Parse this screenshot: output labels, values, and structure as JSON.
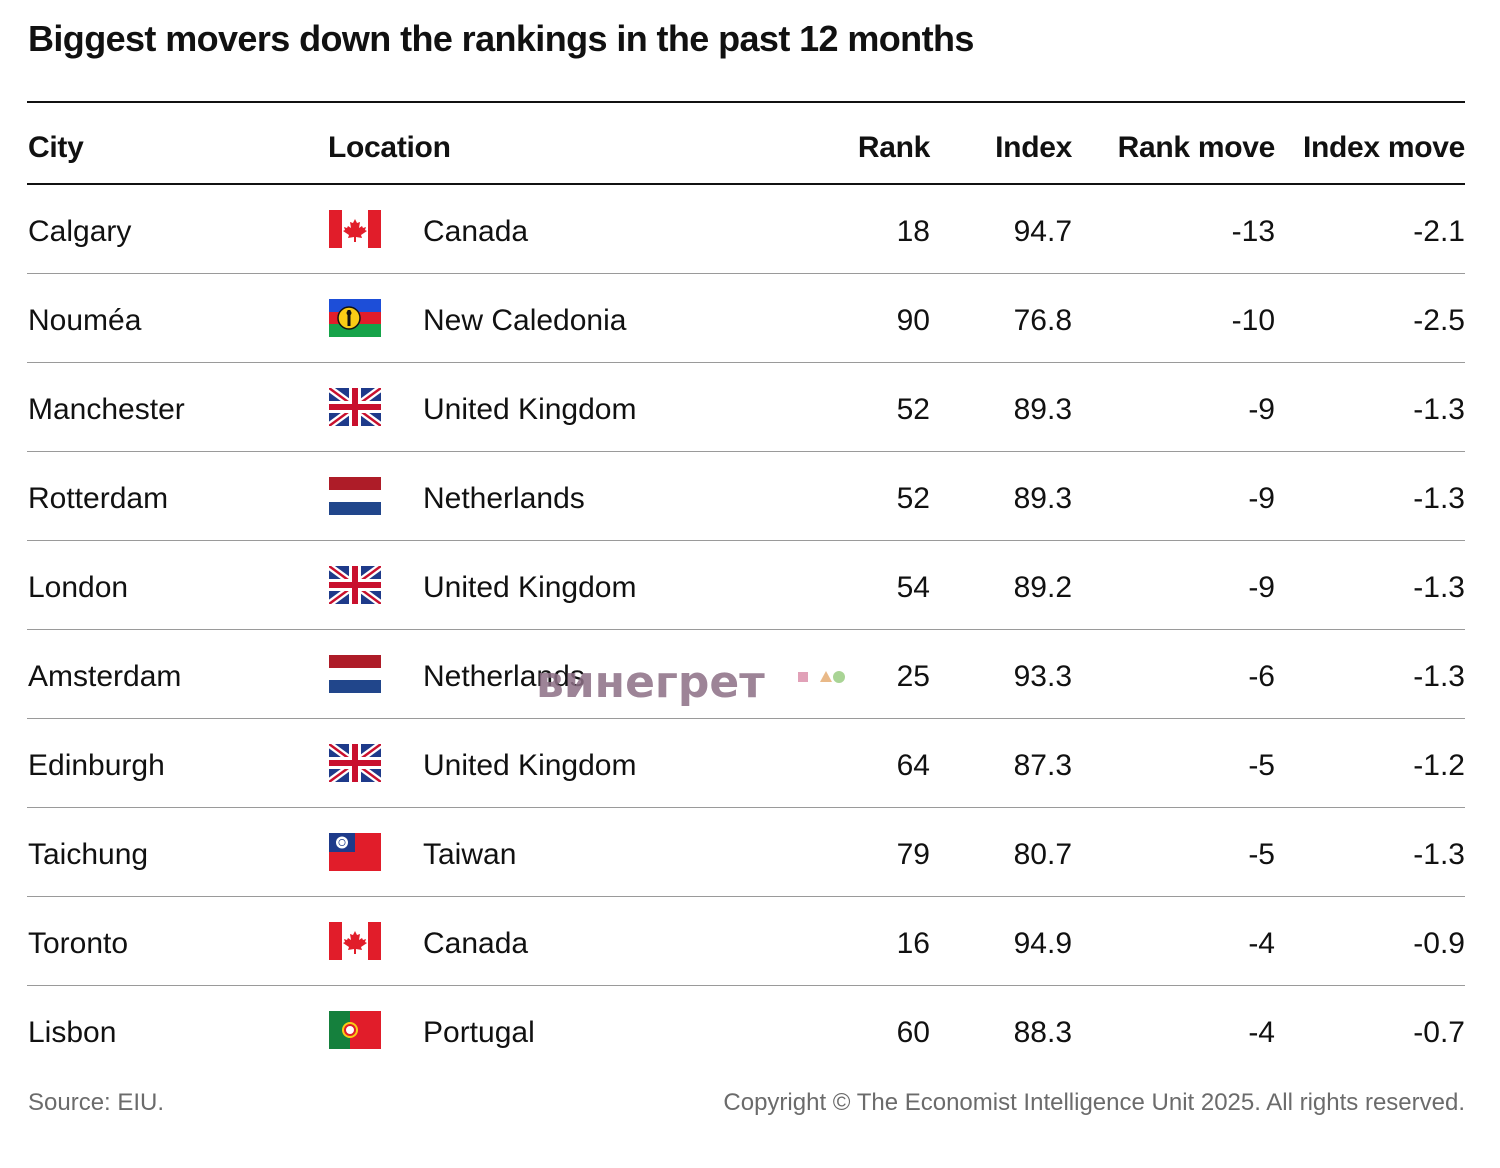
{
  "chart_data": {
    "type": "table",
    "title": "Biggest movers down the rankings in the past 12 months",
    "columns": [
      "City",
      "Location",
      "Rank",
      "Index",
      "Rank move",
      "Index move"
    ],
    "rows": [
      {
        "city": "Calgary",
        "flag": "canada-flag-icon",
        "location": "Canada",
        "rank": "18",
        "index": "94.7",
        "rank_move": "-13",
        "index_move": "-2.1"
      },
      {
        "city": "Nouméa",
        "flag": "new-caledonia-flag-icon",
        "location": "New Caledonia",
        "rank": "90",
        "index": "76.8",
        "rank_move": "-10",
        "index_move": "-2.5"
      },
      {
        "city": "Manchester",
        "flag": "united-kingdom-flag-icon",
        "location": "United Kingdom",
        "rank": "52",
        "index": "89.3",
        "rank_move": "-9",
        "index_move": "-1.3"
      },
      {
        "city": "Rotterdam",
        "flag": "netherlands-flag-icon",
        "location": "Netherlands",
        "rank": "52",
        "index": "89.3",
        "rank_move": "-9",
        "index_move": "-1.3"
      },
      {
        "city": "London",
        "flag": "united-kingdom-flag-icon",
        "location": "United Kingdom",
        "rank": "54",
        "index": "89.2",
        "rank_move": "-9",
        "index_move": "-1.3"
      },
      {
        "city": "Amsterdam",
        "flag": "netherlands-flag-icon",
        "location": "Netherlands",
        "rank": "25",
        "index": "93.3",
        "rank_move": "-6",
        "index_move": "-1.3"
      },
      {
        "city": "Edinburgh",
        "flag": "united-kingdom-flag-icon",
        "location": "United Kingdom",
        "rank": "64",
        "index": "87.3",
        "rank_move": "-5",
        "index_move": "-1.2"
      },
      {
        "city": "Taichung",
        "flag": "taiwan-flag-icon",
        "location": "Taiwan",
        "rank": "79",
        "index": "80.7",
        "rank_move": "-5",
        "index_move": "-1.3"
      },
      {
        "city": "Toronto",
        "flag": "canada-flag-icon",
        "location": "Canada",
        "rank": "16",
        "index": "94.9",
        "rank_move": "-4",
        "index_move": "-0.9"
      },
      {
        "city": "Lisbon",
        "flag": "portugal-flag-icon",
        "location": "Portugal",
        "rank": "60",
        "index": "88.3",
        "rank_move": "-4",
        "index_move": "-0.7"
      }
    ]
  },
  "footer": {
    "source": "Source: EIU.",
    "copyright": "Copyright © The Economist Intelligence Unit 2025. All rights reserved."
  },
  "watermark": {
    "text": "винегрет"
  },
  "colors": {
    "text": "#111111",
    "muted": "#6b6b6b",
    "rule": "#9a9a9a",
    "watermark": "#8d6f86"
  }
}
